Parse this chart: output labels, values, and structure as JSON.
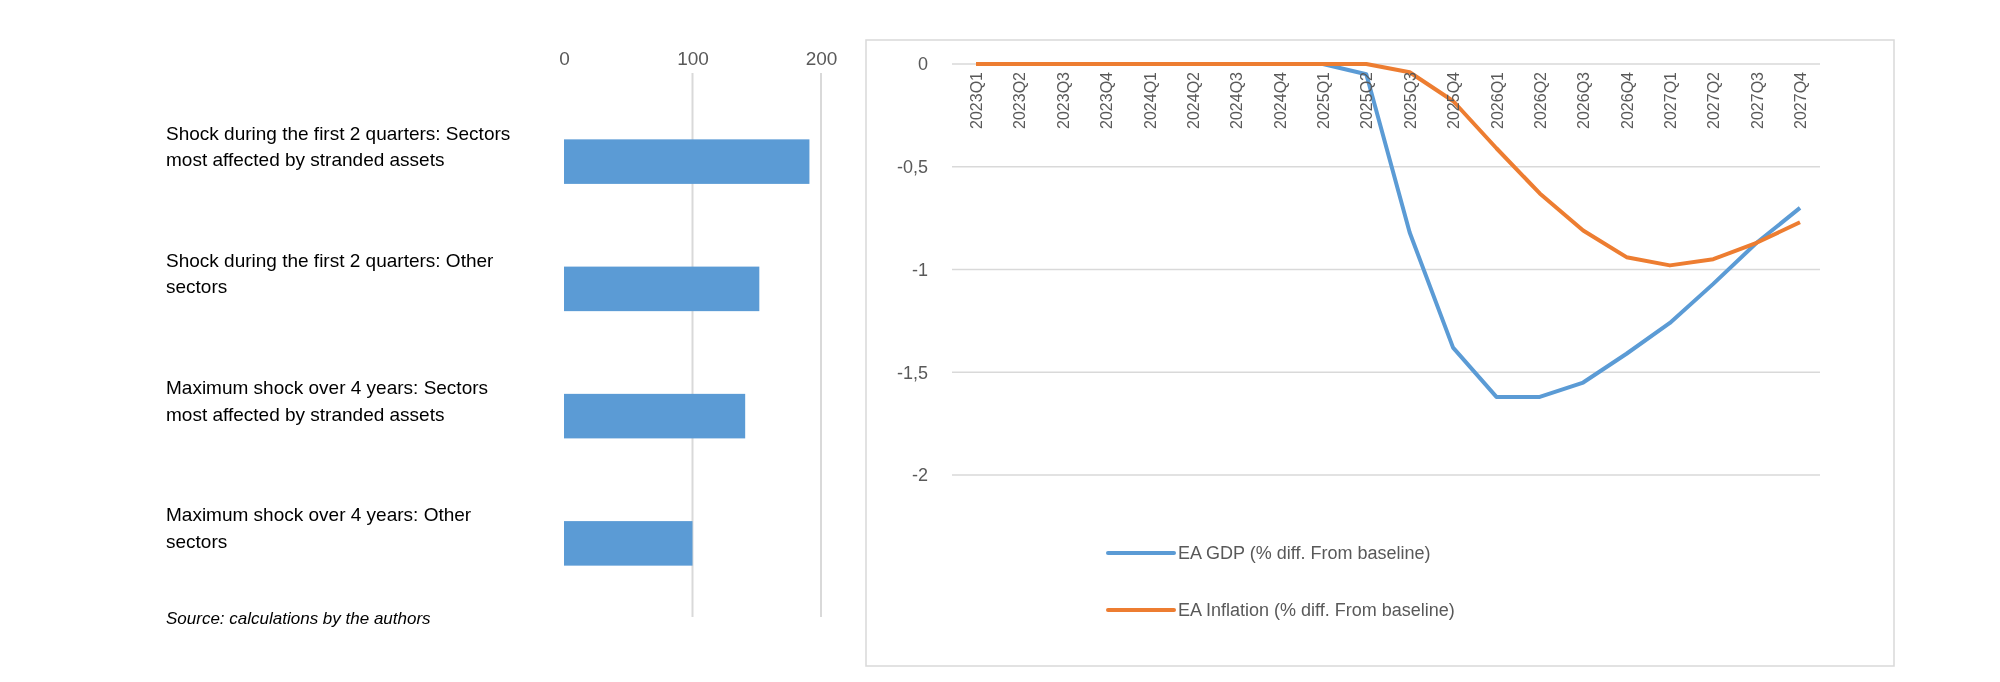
{
  "chart_data": [
    {
      "type": "bar",
      "orientation": "horizontal",
      "categories": [
        "Shock during the first 2 quarters: Sectors most affected by stranded assets",
        "Shock during the first 2 quarters: Other sectors",
        "Maximum shock over 4 years: Sectors most affected by stranded assets",
        "Maximum shock over 4 years: Other sectors"
      ],
      "values": [
        191,
        152,
        141,
        100
      ],
      "color": "#5b9bd5",
      "xlim": [
        0,
        200
      ],
      "xticks": [
        0,
        100,
        200
      ],
      "grid": "x",
      "annotations": [
        "Source: calculations by the authors"
      ]
    },
    {
      "type": "line",
      "categories": [
        "2023Q1",
        "2023Q2",
        "2023Q3",
        "2023Q4",
        "2024Q1",
        "2024Q2",
        "2024Q3",
        "2024Q4",
        "2025Q1",
        "2025Q2",
        "2025Q3",
        "2025Q4",
        "2026Q1",
        "2026Q2",
        "2026Q3",
        "2026Q4",
        "2027Q1",
        "2027Q2",
        "2027Q3",
        "2027Q4"
      ],
      "series": [
        {
          "name": "EA GDP (% diff. From baseline)",
          "color": "#5b9bd5",
          "values": [
            null,
            null,
            null,
            null,
            null,
            null,
            null,
            null,
            0,
            -0.05,
            -0.82,
            -1.38,
            -1.62,
            -1.62,
            -1.55,
            -1.41,
            -1.26,
            -1.07,
            -0.87,
            -0.7
          ]
        },
        {
          "name": "EA Inflation  (% diff. From baseline)",
          "color": "#ed7d31",
          "values": [
            0,
            0,
            0,
            0,
            0,
            0,
            0,
            0,
            0,
            0,
            -0.04,
            -0.18,
            -0.41,
            -0.63,
            -0.81,
            -0.94,
            -0.98,
            -0.95,
            -0.87,
            -0.77
          ]
        }
      ],
      "ylim": [
        -2,
        0
      ],
      "yticks": [
        0,
        {
          "value": -0.5,
          "label": "-0,5"
        },
        -1,
        {
          "value": -1.5,
          "label": "-1,5"
        },
        -2
      ],
      "grid": "y",
      "legend": "bottom",
      "line_style": "solid",
      "marker": "none"
    }
  ]
}
